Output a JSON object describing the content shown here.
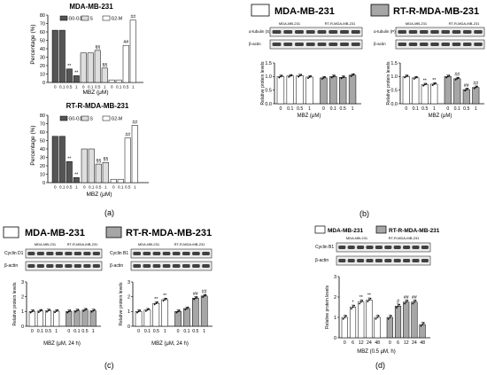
{
  "figure": {
    "panel_labels": [
      "(a)",
      "(b)",
      "(c)",
      "(d)"
    ],
    "colors": {
      "dark": "#555555",
      "mid": "#a6a6a6",
      "light": "#dedede",
      "white": "#ffffff",
      "line": "#000000"
    }
  },
  "chart_data": [
    {
      "id": "a1",
      "type": "bar",
      "title": "MDA-MB-231",
      "xlabel": "MBZ (μM)",
      "ylabel": "Percentage (%)",
      "ylim": [
        0,
        80
      ],
      "yticks": [
        0,
        10,
        20,
        30,
        40,
        50,
        60,
        70,
        80
      ],
      "legend": [
        "G0-G1",
        "S",
        "G2-M"
      ],
      "group_tick_labels": [
        "0",
        "0.1",
        "0.5",
        "1"
      ],
      "series": [
        {
          "name": "G0-G1",
          "values": [
            62,
            62,
            16,
            8
          ],
          "marks": [
            "",
            "",
            "**",
            "**"
          ]
        },
        {
          "name": "S",
          "values": [
            35,
            35,
            38,
            17
          ],
          "marks": [
            "",
            "",
            "§§",
            "§§"
          ]
        },
        {
          "name": "G2-M",
          "values": [
            3,
            3,
            44,
            74
          ],
          "marks": [
            "",
            "",
            "##",
            "##"
          ]
        }
      ]
    },
    {
      "id": "a2",
      "type": "bar",
      "title": "RT-R-MDA-MB-231",
      "xlabel": "MBZ (μM)",
      "ylabel": "Percentage (%)",
      "ylim": [
        0,
        80
      ],
      "yticks": [
        0,
        10,
        20,
        30,
        40,
        50,
        60,
        70,
        80
      ],
      "legend": [
        "G0-G1",
        "S",
        "G2-M"
      ],
      "group_tick_labels": [
        "0",
        "0.1",
        "0.5",
        "1"
      ],
      "series": [
        {
          "name": "G0-G1",
          "values": [
            55,
            55,
            25,
            6
          ],
          "marks": [
            "",
            "",
            "**",
            "**"
          ]
        },
        {
          "name": "S",
          "values": [
            40,
            40,
            22,
            24
          ],
          "marks": [
            "",
            "",
            "§§",
            "§§"
          ]
        },
        {
          "name": "G2-M",
          "values": [
            4,
            4,
            53,
            68
          ],
          "marks": [
            "",
            "",
            "##",
            "##"
          ]
        }
      ]
    },
    {
      "id": "b1",
      "type": "bar",
      "ylabel": "Relative protein levels",
      "xlabel": "MBZ (μM)",
      "ylim": [
        0,
        1.5
      ],
      "yticks": [
        0.0,
        0.5,
        1.0,
        1.5
      ],
      "categories": [
        "0",
        "0.1",
        "0.5",
        "1",
        "0",
        "0.1",
        "0.5",
        "1"
      ],
      "values": [
        1.0,
        1.02,
        1.03,
        0.98,
        0.95,
        1.0,
        0.97,
        1.05
      ],
      "fills": [
        "white",
        "white",
        "white",
        "white",
        "mid",
        "mid",
        "mid",
        "mid"
      ],
      "marks": [
        "",
        "",
        "",
        "",
        "",
        "",
        "",
        ""
      ]
    },
    {
      "id": "b2",
      "type": "bar",
      "ylabel": "Relative protein levels",
      "xlabel": "MBZ (μM)",
      "ylim": [
        0,
        1.5
      ],
      "yticks": [
        0.0,
        0.5,
        1.0,
        1.5
      ],
      "categories": [
        "0",
        "0.1",
        "0.5",
        "1",
        "0",
        "0.1",
        "0.5",
        "1"
      ],
      "values": [
        1.0,
        0.95,
        0.7,
        0.72,
        1.0,
        0.92,
        0.52,
        0.6
      ],
      "fills": [
        "white",
        "white",
        "white",
        "white",
        "mid",
        "mid",
        "mid",
        "mid"
      ],
      "marks": [
        "",
        "",
        "**",
        "**",
        "",
        "##",
        "##",
        "##"
      ]
    },
    {
      "id": "c1",
      "type": "bar",
      "ylabel": "Relative protein levels",
      "xlabel": "MBZ (μM, 24 h)",
      "ylim": [
        0,
        3
      ],
      "yticks": [
        0,
        1,
        2,
        3
      ],
      "categories": [
        "0",
        "0.1",
        "0.5",
        "1",
        "0",
        "0.1",
        "0.5",
        "1"
      ],
      "values": [
        1.0,
        1.03,
        1.05,
        1.02,
        1.0,
        1.05,
        1.1,
        1.05
      ],
      "fills": [
        "white",
        "white",
        "white",
        "white",
        "mid",
        "mid",
        "mid",
        "mid"
      ],
      "marks": [
        "",
        "",
        "",
        "",
        "",
        "",
        "",
        ""
      ]
    },
    {
      "id": "c2",
      "type": "bar",
      "ylabel": "Relative protein levels",
      "xlabel": "MBZ (μM, 24 h)",
      "ylim": [
        0,
        3
      ],
      "yticks": [
        0,
        1,
        2,
        3
      ],
      "categories": [
        "0",
        "0.1",
        "0.5",
        "1",
        "0",
        "0.1",
        "0.5",
        "1"
      ],
      "values": [
        1.0,
        1.1,
        1.55,
        1.8,
        1.0,
        1.2,
        1.9,
        2.05
      ],
      "fills": [
        "white",
        "white",
        "white",
        "white",
        "mid",
        "mid",
        "mid",
        "mid"
      ],
      "marks": [
        "",
        "",
        "**",
        "**",
        "",
        "",
        "##",
        "##"
      ]
    },
    {
      "id": "d1",
      "type": "bar",
      "ylabel": "Relative protein levels",
      "xlabel": "MBZ (0.5 μM, h)",
      "ylim": [
        0,
        3
      ],
      "yticks": [
        0,
        1,
        2,
        3
      ],
      "categories": [
        "0",
        "6",
        "12",
        "24",
        "48",
        "0",
        "6",
        "12",
        "24",
        "48"
      ],
      "values": [
        1.0,
        1.5,
        1.75,
        1.85,
        1.0,
        1.0,
        1.55,
        1.75,
        1.75,
        0.65
      ],
      "fills": [
        "white",
        "white",
        "white",
        "white",
        "white",
        "mid",
        "mid",
        "mid",
        "mid",
        "mid"
      ],
      "marks": [
        "",
        "*",
        "**",
        "**",
        "",
        "",
        "#",
        "##",
        "##",
        ""
      ]
    }
  ],
  "panel_a": {
    "chart1_title": "MDA-MB-231",
    "chart2_title": "RT-R-MDA-MB-231",
    "legend": [
      "G0-G1",
      "S",
      "G2-M"
    ],
    "xlabel": "MBZ (μM)",
    "ylabel": "Percentage (%)"
  },
  "panel_b": {
    "legend": [
      "MDA-MB-231",
      "RT-R-MDA-MB-231"
    ],
    "blot_headers": [
      "MDA-MB-231",
      "RT-R-MDA-MB-231"
    ],
    "left_blots": [
      "α-tubulin (S)",
      "β-actin"
    ],
    "right_blots": [
      "α-tubulin (P)",
      "β-actin"
    ],
    "xlabel": "MBZ (μM)"
  },
  "panel_c": {
    "legend": [
      "MDA-MB-231",
      "RT-R-MDA-MB-231"
    ],
    "blot_headers": [
      "MDA-MB-231",
      "RT-R-MDA-MB-231"
    ],
    "left_blots": [
      "Cyclin D1",
      "β-actin"
    ],
    "right_blots": [
      "Cyclin B1",
      "β-actin"
    ],
    "xlabel": "MBZ (μM, 24 h)"
  },
  "panel_d": {
    "legend": [
      "MDA-MB-231",
      "RT-R-MDA-MB-231"
    ],
    "blot_headers": [
      "MDA-MB-231",
      "RT-R-MDA-MB-231"
    ],
    "blots": [
      "Cyclin B1",
      "β-actin"
    ],
    "xlabel": "MBZ (0.5 μM, h)"
  }
}
